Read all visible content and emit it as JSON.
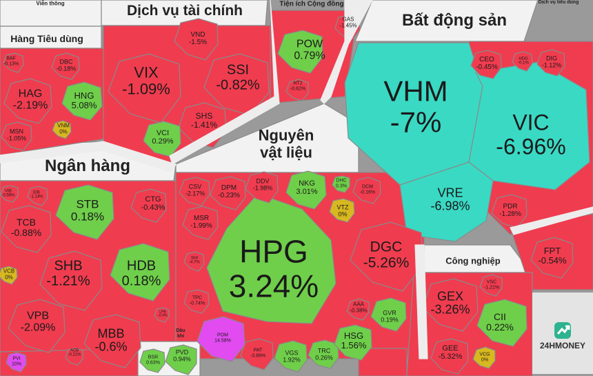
{
  "brand": {
    "name": "24HMONEY"
  },
  "colors": {
    "down": "#f03c4f",
    "up": "#6fcf4a",
    "flat": "#d8b820",
    "floor": "#3ad9c4",
    "ceiling": "#e14bf0",
    "sector_bg": "#f2f2f2",
    "border": "#8a8a8a"
  },
  "sectors": [
    {
      "name": "Viễn thông"
    },
    {
      "name": "Dịch vụ tài chính"
    },
    {
      "name": "Tiện ích Cộng đồng"
    },
    {
      "name": "Bất động sản"
    },
    {
      "name": "Dịch vụ tiêu dùng"
    },
    {
      "name": "Hàng Tiêu dùng"
    },
    {
      "name": "Nguyên vật liệu"
    },
    {
      "name": "Ngân hàng"
    },
    {
      "name": "Công nghiệp"
    },
    {
      "name": "Dầu khí"
    }
  ],
  "chart_data": {
    "type": "treemap",
    "cells": [
      {
        "ticker": "HPG",
        "change": "3.24%",
        "status": "up"
      },
      {
        "ticker": "VHM",
        "change": "-7%",
        "status": "floor"
      },
      {
        "ticker": "VIC",
        "change": "-6.96%",
        "status": "floor"
      },
      {
        "ticker": "VRE",
        "change": "-6.98%",
        "status": "floor"
      },
      {
        "ticker": "VIX",
        "change": "-1.09%",
        "status": "down"
      },
      {
        "ticker": "SSI",
        "change": "-0.82%",
        "status": "down"
      },
      {
        "ticker": "VND",
        "change": "-1.5%",
        "status": "down"
      },
      {
        "ticker": "SHS",
        "change": "-1.41%",
        "status": "down"
      },
      {
        "ticker": "VCI",
        "change": "0.29%",
        "status": "up"
      },
      {
        "ticker": "POW",
        "change": "0.79%",
        "status": "up"
      },
      {
        "ticker": "GAS",
        "change": "-1.45%",
        "status": "down"
      },
      {
        "ticker": "NT2",
        "change": "-0.62%",
        "status": "down"
      },
      {
        "ticker": "CEO",
        "change": "-0.45%",
        "status": "down"
      },
      {
        "ticker": "DIG",
        "change": "-1.12%",
        "status": "down"
      },
      {
        "ticker": "HDG",
        "change": "-0.1%",
        "status": "down"
      },
      {
        "ticker": "PDR",
        "change": "-1.28%",
        "status": "down"
      },
      {
        "ticker": "FPT",
        "change": "-0.54%",
        "status": "down"
      },
      {
        "ticker": "HAG",
        "change": "-2.19%",
        "status": "down"
      },
      {
        "ticker": "HNG",
        "change": "5.08%",
        "status": "up"
      },
      {
        "ticker": "DBC",
        "change": "-0.18%",
        "status": "down"
      },
      {
        "ticker": "BAF",
        "change": "-0.13%",
        "status": "down"
      },
      {
        "ticker": "MSN",
        "change": "-1.05%",
        "status": "down"
      },
      {
        "ticker": "VNM",
        "change": "0%",
        "status": "flat"
      },
      {
        "ticker": "STB",
        "change": "0.18%",
        "status": "up"
      },
      {
        "ticker": "HDB",
        "change": "0.18%",
        "status": "up"
      },
      {
        "ticker": "TCB",
        "change": "-0.88%",
        "status": "down"
      },
      {
        "ticker": "SHB",
        "change": "-1.21%",
        "status": "down"
      },
      {
        "ticker": "VPB",
        "change": "-2.09%",
        "status": "down"
      },
      {
        "ticker": "MBB",
        "change": "-0.6%",
        "status": "down"
      },
      {
        "ticker": "CTG",
        "change": "-0.43%",
        "status": "down"
      },
      {
        "ticker": "VCB",
        "change": "0%",
        "status": "flat"
      },
      {
        "ticker": "VIB",
        "change": "-0.56%",
        "status": "down"
      },
      {
        "ticker": "EIB",
        "change": "-1.14%",
        "status": "down"
      },
      {
        "ticker": "ACB",
        "change": "-0.21%",
        "status": "down"
      },
      {
        "ticker": "LPB",
        "change": "-0.4%",
        "status": "down"
      },
      {
        "ticker": "PVI",
        "change": "10%",
        "status": "ceiling"
      },
      {
        "ticker": "DGC",
        "change": "-5.26%",
        "status": "down"
      },
      {
        "ticker": "CSV",
        "change": "-2.17%",
        "status": "down"
      },
      {
        "ticker": "DPM",
        "change": "-0.23%",
        "status": "down"
      },
      {
        "ticker": "DDV",
        "change": "-1.98%",
        "status": "down"
      },
      {
        "ticker": "NKG",
        "change": "3.01%",
        "status": "up"
      },
      {
        "ticker": "DHC",
        "change": "0.3%",
        "status": "up"
      },
      {
        "ticker": "DCM",
        "change": "-0.16%",
        "status": "down"
      },
      {
        "ticker": "VTZ",
        "change": "0%",
        "status": "flat"
      },
      {
        "ticker": "MSR",
        "change": "-1.99%",
        "status": "down"
      },
      {
        "ticker": "SHI",
        "change": "-4.7%",
        "status": "down"
      },
      {
        "ticker": "TPC",
        "change": "-0.74%",
        "status": "down"
      },
      {
        "ticker": "POM",
        "change": "14.58%",
        "status": "ceiling"
      },
      {
        "ticker": "PAT",
        "change": "-3.89%",
        "status": "down"
      },
      {
        "ticker": "VGS",
        "change": "1.92%",
        "status": "up"
      },
      {
        "ticker": "TRC",
        "change": "0.26%",
        "status": "up"
      },
      {
        "ticker": "HSG",
        "change": "1.56%",
        "status": "up"
      },
      {
        "ticker": "GVR",
        "change": "0.19%",
        "status": "up"
      },
      {
        "ticker": "AAA",
        "change": "-0.38%",
        "status": "down"
      },
      {
        "ticker": "GEX",
        "change": "-3.26%",
        "status": "down"
      },
      {
        "ticker": "GEE",
        "change": "-5.32%",
        "status": "down"
      },
      {
        "ticker": "CII",
        "change": "0.22%",
        "status": "up"
      },
      {
        "ticker": "VCG",
        "change": "0%",
        "status": "flat"
      },
      {
        "ticker": "VSC",
        "change": "-1.21%",
        "status": "down"
      },
      {
        "ticker": "PVD",
        "change": "0.94%",
        "status": "up"
      },
      {
        "ticker": "BSR",
        "change": "0.63%",
        "status": "up"
      }
    ]
  }
}
